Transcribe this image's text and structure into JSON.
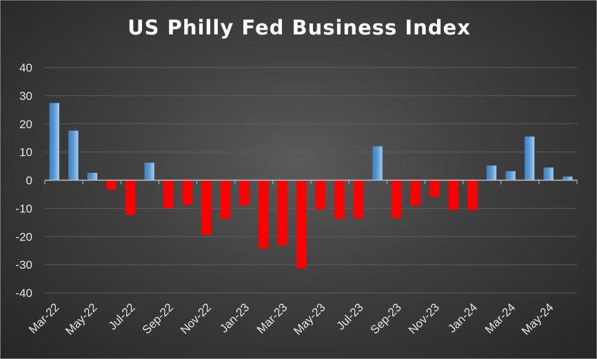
{
  "chart_data": {
    "type": "bar",
    "title": "US Philly Fed Business Index",
    "xlabel": "",
    "ylabel": "",
    "ylim": [
      -40,
      40
    ],
    "yticks": [
      40,
      30,
      20,
      10,
      0,
      -10,
      -20,
      -30,
      -40
    ],
    "grid": true,
    "legend": "none",
    "categories": [
      "Mar-22",
      "Apr-22",
      "May-22",
      "Jun-22",
      "Jul-22",
      "Aug-22",
      "Sep-22",
      "Oct-22",
      "Nov-22",
      "Dec-22",
      "Jan-23",
      "Feb-23",
      "Mar-23",
      "Apr-23",
      "May-23",
      "Jun-23",
      "Jul-23",
      "Aug-23",
      "Sep-23",
      "Oct-23",
      "Nov-23",
      "Dec-23",
      "Jan-24",
      "Feb-24",
      "Mar-24",
      "Apr-24",
      "May-24",
      "Jun-24"
    ],
    "x_tick_labels": [
      "Mar-22",
      "May-22",
      "Jul-22",
      "Sep-22",
      "Nov-22",
      "Jan-23",
      "Mar-23",
      "May-23",
      "Jul-23",
      "Sep-23",
      "Nov-23",
      "Jan-24",
      "Mar-24",
      "May-24"
    ],
    "values": [
      27.4,
      17.6,
      2.6,
      -3.3,
      -12.3,
      6.2,
      -9.9,
      -8.7,
      -19.4,
      -13.8,
      -8.9,
      -24.3,
      -23.2,
      -31.3,
      -10.4,
      -13.7,
      -13.5,
      12.0,
      -13.5,
      -9.0,
      -5.9,
      -10.5,
      -10.6,
      5.2,
      3.2,
      15.5,
      4.5,
      1.3
    ],
    "colors": {
      "positive": "#5b9bd5",
      "negative": "#ff0000",
      "grid": "#5e5e5e",
      "axis": "#bfbfbf"
    }
  }
}
